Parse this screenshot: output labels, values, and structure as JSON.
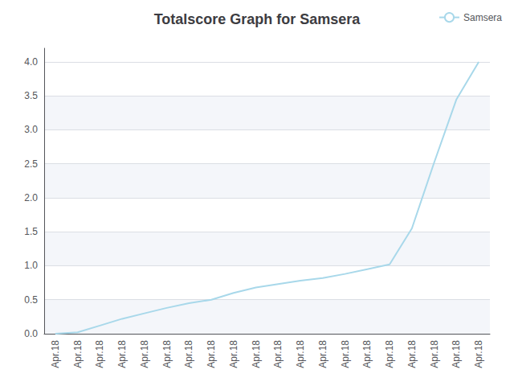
{
  "chart_data": {
    "type": "line",
    "title": "Totalscore Graph for Samsera",
    "categories": [
      "Apr.18",
      "Apr.18",
      "Apr.18",
      "Apr.18",
      "Apr.18",
      "Apr.18",
      "Apr.18",
      "Apr.18",
      "Apr.18",
      "Apr.18",
      "Apr.18",
      "Apr.18",
      "Apr.18",
      "Apr.18",
      "Apr.18",
      "Apr.18",
      "Apr.18",
      "Apr.18",
      "Apr.18",
      "Apr.18"
    ],
    "series": [
      {
        "name": "Samsera",
        "color": "#a8d8ea",
        "values": [
          0.0,
          0.02,
          0.12,
          0.22,
          0.3,
          0.38,
          0.45,
          0.5,
          0.6,
          0.68,
          0.73,
          0.78,
          0.82,
          0.88,
          0.95,
          1.02,
          1.55,
          2.52,
          3.45,
          4.0
        ]
      }
    ],
    "ylim": [
      0.0,
      4.2
    ],
    "yticks": [
      {
        "value": 0,
        "label": "0.0"
      },
      0.5,
      {
        "value": 1,
        "label": "1.0"
      },
      1.5,
      {
        "value": 2,
        "label": "2.0"
      },
      2.5,
      {
        "value": 3,
        "label": "3.0"
      },
      3.5,
      {
        "value": 4,
        "label": "4.0"
      }
    ],
    "grid": true,
    "legend": "upper right"
  }
}
